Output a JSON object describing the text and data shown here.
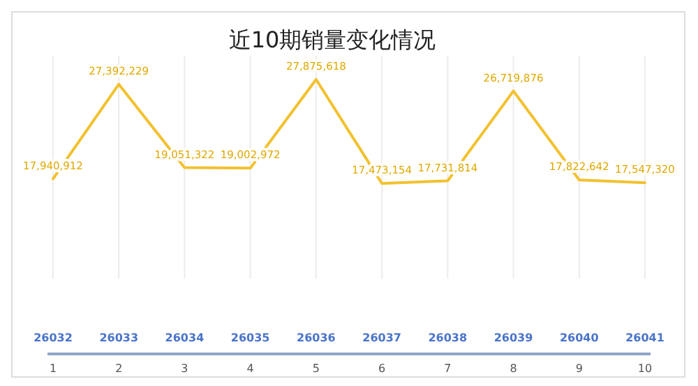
{
  "chart_data": {
    "type": "line",
    "title": "近10期销量变化情况",
    "categories": [
      "1",
      "2",
      "3",
      "4",
      "5",
      "6",
      "7",
      "8",
      "9",
      "10"
    ],
    "series": [
      {
        "color": "#f2c12e",
        "values": [
          17940912,
          27392229,
          19051322,
          19002972,
          27875618,
          17473154,
          17731814,
          26719876,
          17822642,
          17547320
        ],
        "value_labels": [
          "17,940,912",
          "27,392,229",
          "19,051,322",
          "19,002,972",
          "27,875,618",
          "17,473,154",
          "17,731,814",
          "26,719,876",
          "17,822,642",
          "17,547,320"
        ]
      }
    ],
    "tick_labels": "x",
    "grid": "x",
    "marker": "none",
    "line_style": "solid",
    "annotations": [
      "26032",
      "26033",
      "26034",
      "26035",
      "26036",
      "26037",
      "26038",
      "26039",
      "26040",
      "26041"
    ]
  }
}
